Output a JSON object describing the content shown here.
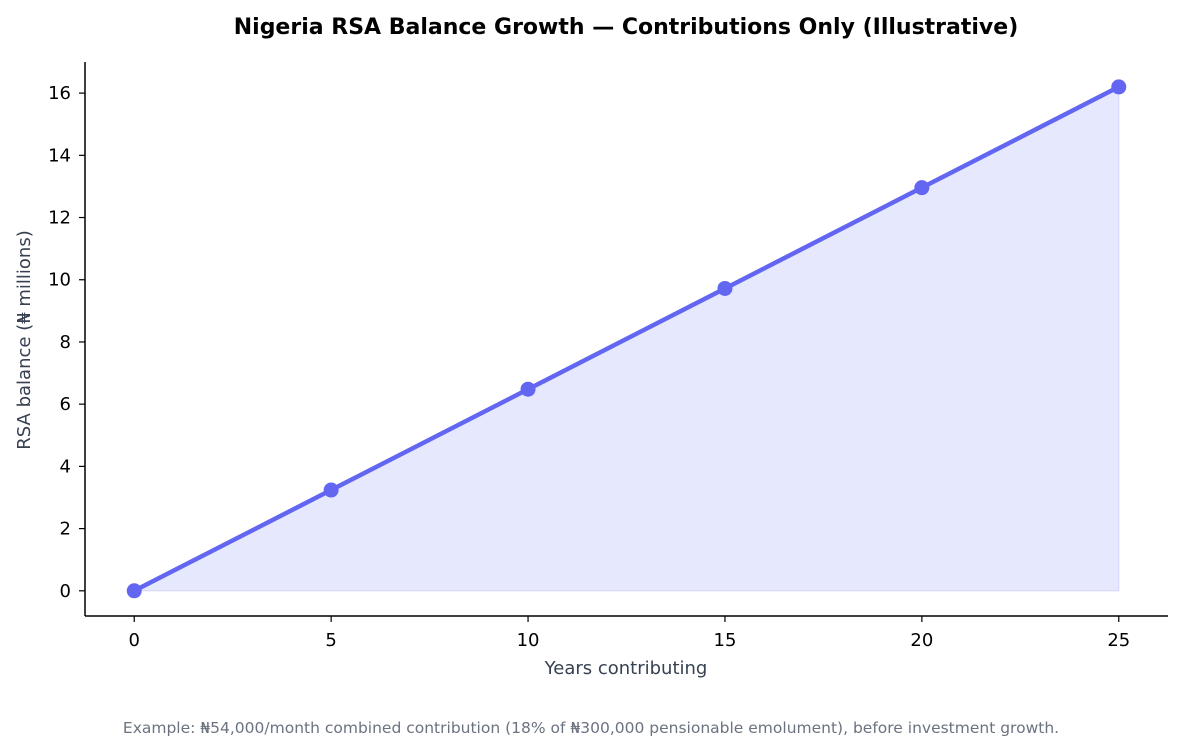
{
  "chart_data": {
    "type": "area",
    "title": "Nigeria RSA Balance Growth — Contributions Only (Illustrative)",
    "xlabel": "Years contributing",
    "ylabel": "RSA balance (₦ millions)",
    "x": [
      0,
      5,
      10,
      15,
      20,
      25
    ],
    "series": [
      {
        "values": [
          0,
          3.24,
          6.48,
          9.72,
          12.96,
          16.2
        ]
      }
    ],
    "xlim": [
      -1.25,
      26.25
    ],
    "ylim": [
      -0.81,
      17.0
    ],
    "x_ticks": [
      0,
      5,
      10,
      15,
      20,
      25
    ],
    "y_ticks": [
      0,
      2,
      4,
      6,
      8,
      10,
      12,
      14,
      16
    ],
    "grid": false,
    "legend": "none",
    "colors": {
      "line": "#6366f1",
      "fill": "#e5e7fd",
      "axis": "#000000"
    }
  },
  "footnote": "Example: ₦54,000/month combined contribution (18% of ₦300,000 pensionable emolument), before investment growth."
}
